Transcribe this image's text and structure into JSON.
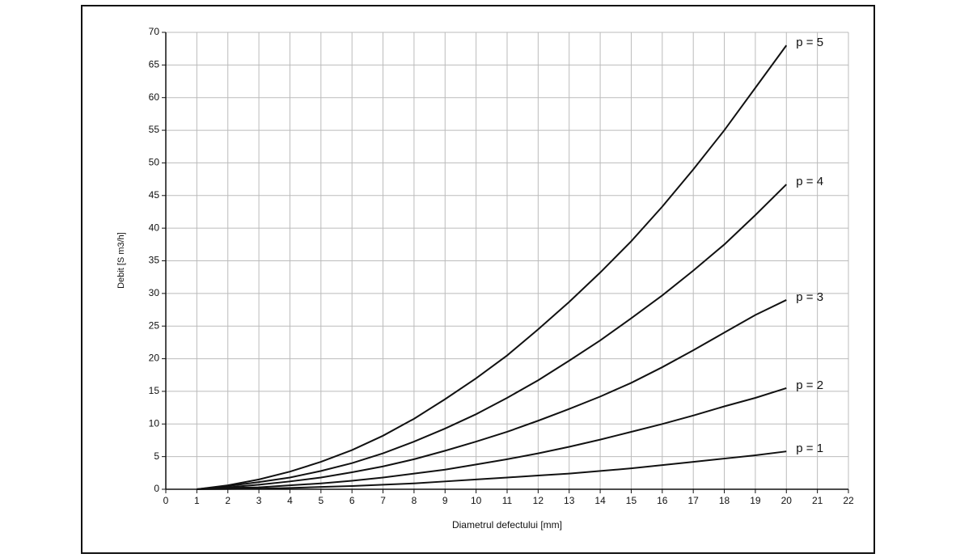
{
  "chart_data": {
    "type": "line",
    "x_label": "Diametrul defectului [mm]",
    "y_label": "Debit [S m3/h]",
    "x": [
      1,
      2,
      3,
      4,
      5,
      6,
      7,
      8,
      9,
      10,
      11,
      12,
      13,
      14,
      15,
      16,
      17,
      18,
      19,
      20
    ],
    "series": [
      {
        "name": "p = 5",
        "color": "#111111",
        "values": [
          0,
          0.6,
          1.5,
          2.7,
          4.2,
          6,
          8.2,
          10.8,
          13.8,
          17,
          20.5,
          24.5,
          28.7,
          33.2,
          38,
          43.3,
          49,
          55,
          61.5,
          68
        ]
      },
      {
        "name": "p = 4",
        "color": "#111111",
        "values": [
          0,
          0.5,
          1.1,
          1.8,
          2.8,
          4,
          5.5,
          7.3,
          9.3,
          11.5,
          14,
          16.7,
          19.7,
          22.8,
          26.2,
          29.7,
          33.5,
          37.5,
          42,
          46.7
        ]
      },
      {
        "name": "p = 3",
        "color": "#111111",
        "values": [
          0,
          0.3,
          0.7,
          1.2,
          1.8,
          2.6,
          3.5,
          4.6,
          5.9,
          7.3,
          8.8,
          10.5,
          12.3,
          14.2,
          16.3,
          18.7,
          21.3,
          24,
          26.7,
          29
        ]
      },
      {
        "name": "p = 2",
        "color": "#111111",
        "values": [
          0,
          0.2,
          0.3,
          0.6,
          0.9,
          1.3,
          1.8,
          2.4,
          3,
          3.8,
          4.6,
          5.5,
          6.5,
          7.6,
          8.8,
          10,
          11.3,
          12.7,
          14,
          15.5
        ]
      },
      {
        "name": "p = 1",
        "color": "#111111",
        "values": [
          0,
          0.05,
          0.1,
          0.2,
          0.35,
          0.5,
          0.7,
          0.9,
          1.2,
          1.5,
          1.8,
          2.1,
          2.4,
          2.8,
          3.2,
          3.7,
          4.2,
          4.7,
          5.2,
          5.8
        ]
      }
    ],
    "xlim": [
      0,
      22
    ],
    "xticks": [
      0,
      1,
      2,
      3,
      4,
      5,
      6,
      7,
      8,
      9,
      10,
      11,
      12,
      13,
      14,
      15,
      16,
      17,
      18,
      19,
      20,
      21,
      22
    ],
    "ylim": [
      0,
      70
    ],
    "yticks": [
      0,
      5,
      10,
      15,
      20,
      25,
      30,
      35,
      40,
      45,
      50,
      55,
      60,
      65,
      70
    ],
    "grid": true
  }
}
